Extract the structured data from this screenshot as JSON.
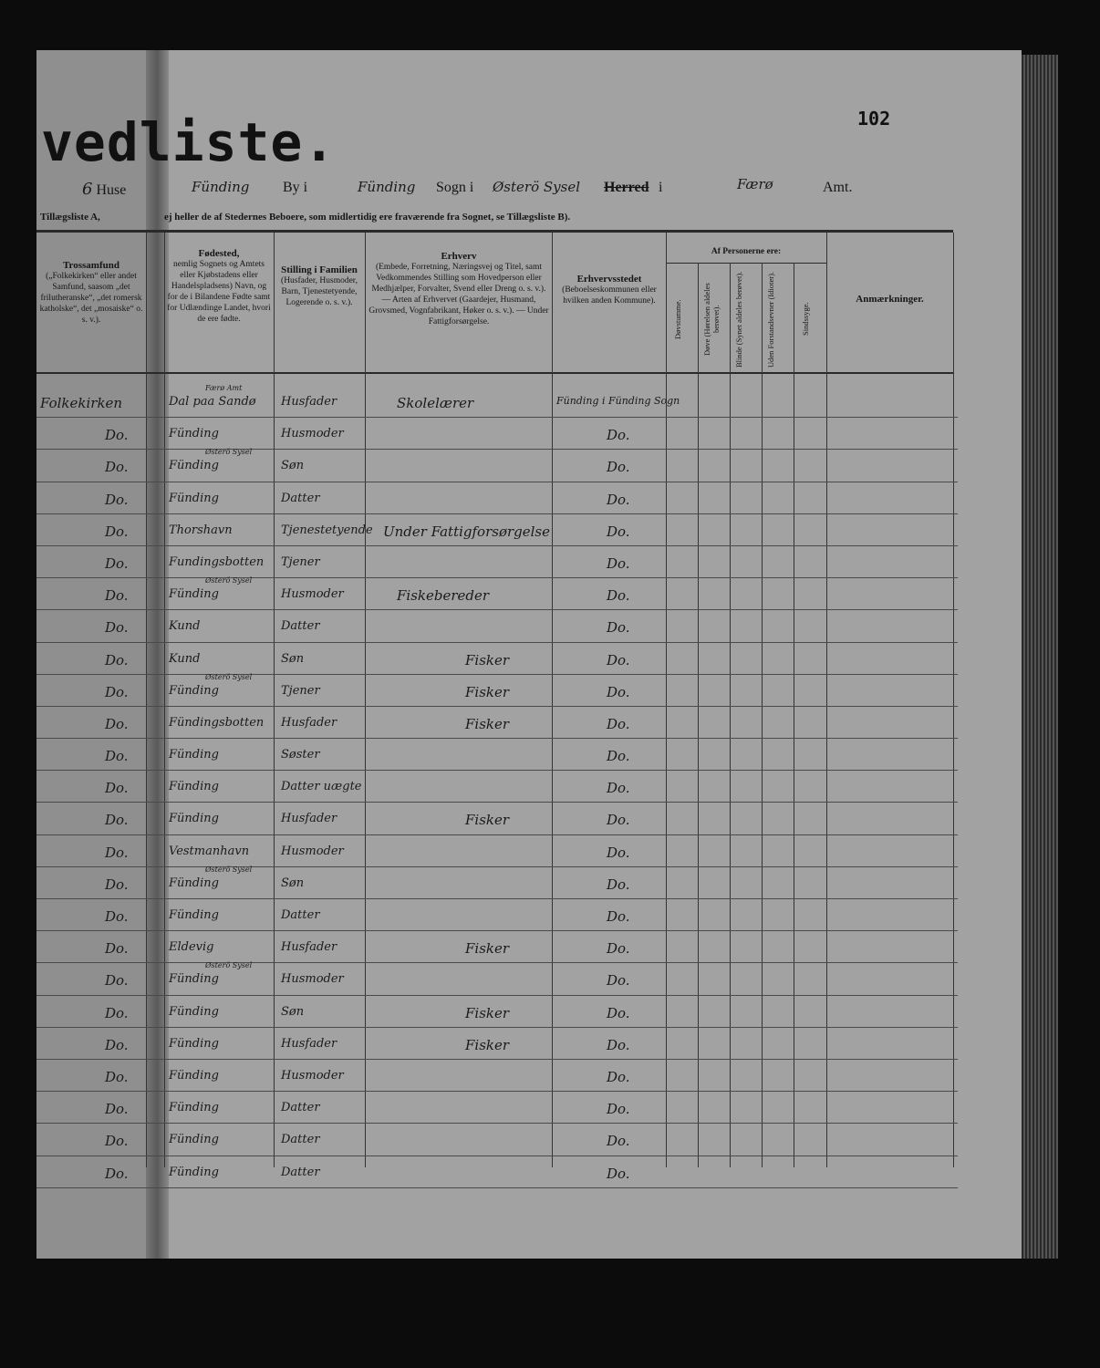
{
  "page": {
    "title_fragment": "vedliste.",
    "page_number": "102",
    "location_line": {
      "house_no_label": "Huse",
      "house_no": "6",
      "by_value": "Fünding",
      "by_label": "By i",
      "sogn_value": "Fünding",
      "sogn_label": "Sogn i",
      "herred_value": "Østerö Sysel",
      "herred_label": "Herred",
      "herred_suffix": "i",
      "amt_value": "Færø",
      "amt_label": "Amt."
    },
    "sub_left": "Tillægsliste A,",
    "sub_right": "ej heller de af Stedernes Beboere, som midlertidig ere fraværende fra Sognet, se Tillægsliste B)."
  },
  "columns": {
    "trossamfund": {
      "title": "Trossamfund",
      "desc": "(„Folkekirken“ eller andet Samfund, saasom „det frilutheranske“, „det romersk katholske“, det „mosaiske“ o. s. v.)."
    },
    "fodested": {
      "title": "Fødested,",
      "desc": "nemlig Sognets og Amtets eller Kjøbstadens eller Handelspladsens) Navn, og for de i Bilandene Fødte samt for Udlændinge Landet, hvori de ere fødte."
    },
    "stilling": {
      "title": "Stilling i Familien",
      "desc": "(Husfader, Husmoder, Barn, Tjenestetyende, Logerende o. s. v.)."
    },
    "erhverv": {
      "title": "Erhverv",
      "desc": "(Embede, Forretning, Næringsvej og Titel, samt Vedkommendes Stilling som Hovedperson eller Medhjælper, Forvalter, Svend eller Dreng o. s. v.). — Arten af Erhvervet (Gaardejer, Husmand, Grovsmed, Vognfabrikant, Høker o. s. v.). — Under Fattigforsørgelse."
    },
    "erhvervsstedet": {
      "title": "Erhvervsstedet",
      "desc": "(Beboelseskommunen eller hvilken anden Kommune)."
    },
    "af_personerne": {
      "title": "Af Personerne ere:",
      "sub": [
        "Døvstumme.",
        "Døve (Hørelsen aldeles berøvet).",
        "Blinde (Synet aldeles berøvet).",
        "Uden Forstandsevner (Idioter).",
        "Sindssyge."
      ]
    },
    "anmaerkninger": {
      "title": "Anmærkninger."
    }
  },
  "rows": [
    {
      "tro": "Folkekirken",
      "fod": "Dal paa Sandø",
      "fod_note": "Færø Amt",
      "stil": "Husfader",
      "erh": "Skolelærer",
      "sted": "Fünding i Fünding Sogn"
    },
    {
      "tro": "Do.",
      "fod": "Fünding",
      "fod_note": "",
      "stil": "Husmoder",
      "erh": "",
      "sted": "Do."
    },
    {
      "tro": "Do.",
      "fod": "Fünding",
      "fod_note": "Østerö Sysel",
      "stil": "Søn",
      "erh": "",
      "sted": "Do."
    },
    {
      "tro": "Do.",
      "fod": "Fünding",
      "fod_note": "",
      "stil": "Datter",
      "erh": "",
      "sted": "Do."
    },
    {
      "tro": "Do.",
      "fod": "Thorshavn",
      "fod_note": "",
      "stil": "Tjenestetyende",
      "erh": "Under Fattigforsørgelse",
      "sted": "Do."
    },
    {
      "tro": "Do.",
      "fod": "Fundingsbotten",
      "fod_note": "",
      "stil": "Tjener",
      "erh": "",
      "sted": "Do."
    },
    {
      "tro": "Do.",
      "fod": "Fünding",
      "fod_note": "Østerö Sysel",
      "stil": "Husmoder",
      "erh": "Fiskebereder",
      "sted": "Do."
    },
    {
      "tro": "Do.",
      "fod": "Kund",
      "fod_note": "",
      "stil": "Datter",
      "erh": "",
      "sted": "Do."
    },
    {
      "tro": "Do.",
      "fod": "Kund",
      "fod_note": "",
      "stil": "Søn",
      "erh": "Fisker",
      "sted": "Do."
    },
    {
      "tro": "Do.",
      "fod": "Fünding",
      "fod_note": "Østerö Sysel",
      "stil": "Tjener",
      "erh": "Fisker",
      "sted": "Do."
    },
    {
      "tro": "Do.",
      "fod": "Fündingsbotten",
      "fod_note": "",
      "stil": "Husfader",
      "erh": "Fisker",
      "sted": "Do."
    },
    {
      "tro": "Do.",
      "fod": "Fünding",
      "fod_note": "",
      "stil": "Søster",
      "erh": "",
      "sted": "Do."
    },
    {
      "tro": "Do.",
      "fod": "Fünding",
      "fod_note": "",
      "stil": "Datter uægte",
      "erh": "",
      "sted": "Do."
    },
    {
      "tro": "Do.",
      "fod": "Fünding",
      "fod_note": "",
      "stil": "Husfader",
      "erh": "Fisker",
      "sted": "Do."
    },
    {
      "tro": "Do.",
      "fod": "Vestmanhavn",
      "fod_note": "",
      "stil": "Husmoder",
      "erh": "",
      "sted": "Do."
    },
    {
      "tro": "Do.",
      "fod": "Fünding",
      "fod_note": "Østerö Sysel",
      "stil": "Søn",
      "erh": "",
      "sted": "Do."
    },
    {
      "tro": "Do.",
      "fod": "Fünding",
      "fod_note": "",
      "stil": "Datter",
      "erh": "",
      "sted": "Do."
    },
    {
      "tro": "Do.",
      "fod": "Eldevig",
      "fod_note": "",
      "stil": "Husfader",
      "erh": "Fisker",
      "sted": "Do."
    },
    {
      "tro": "Do.",
      "fod": "Fünding",
      "fod_note": "Østerö Sysel",
      "stil": "Husmoder",
      "erh": "",
      "sted": "Do."
    },
    {
      "tro": "Do.",
      "fod": "Fünding",
      "fod_note": "",
      "stil": "Søn",
      "erh": "Fisker",
      "sted": "Do."
    },
    {
      "tro": "Do.",
      "fod": "Fünding",
      "fod_note": "",
      "stil": "Husfader",
      "erh": "Fisker",
      "sted": "Do."
    },
    {
      "tro": "Do.",
      "fod": "Fünding",
      "fod_note": "",
      "stil": "Husmoder",
      "erh": "",
      "sted": "Do."
    },
    {
      "tro": "Do.",
      "fod": "Fünding",
      "fod_note": "",
      "stil": "Datter",
      "erh": "",
      "sted": "Do."
    },
    {
      "tro": "Do.",
      "fod": "Fünding",
      "fod_note": "",
      "stil": "Datter",
      "erh": "",
      "sted": "Do."
    },
    {
      "tro": "Do.",
      "fod": "Fünding",
      "fod_note": "",
      "stil": "Datter",
      "erh": "",
      "sted": "Do."
    }
  ]
}
